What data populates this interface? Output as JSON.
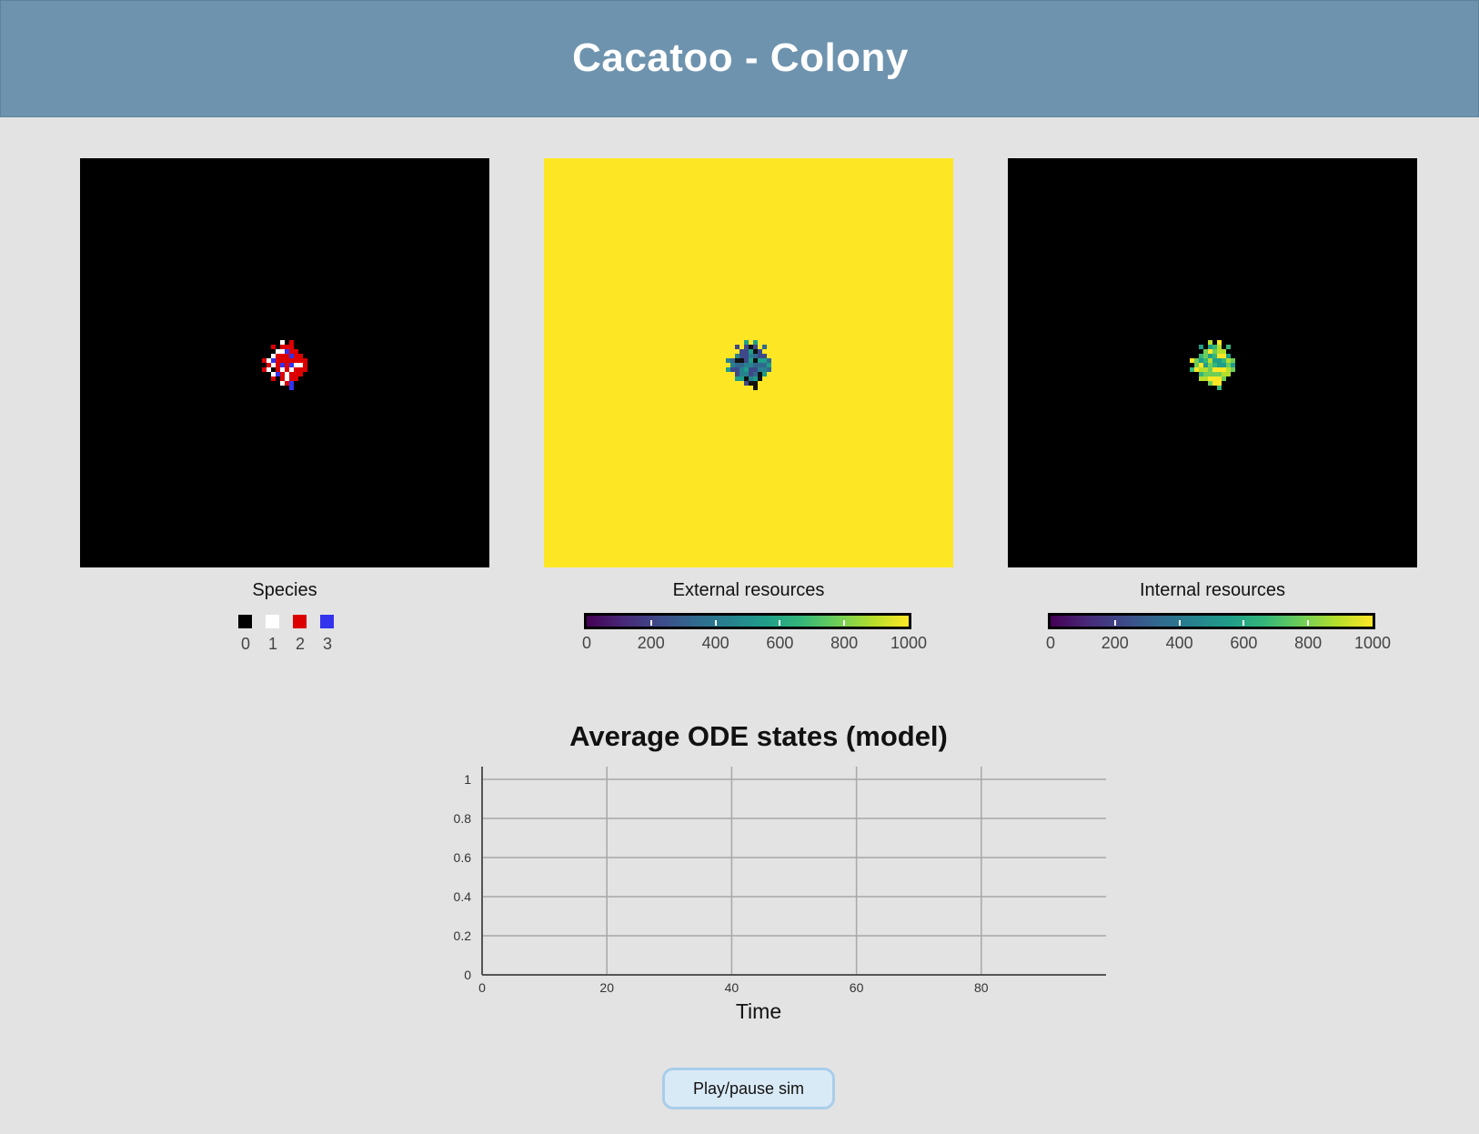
{
  "header": {
    "title": "Cacatoo - Colony"
  },
  "panels": {
    "species": {
      "label": "Species",
      "legend": [
        {
          "value": "0",
          "color": "#000000"
        },
        {
          "value": "1",
          "color": "#ffffff"
        },
        {
          "value": "2",
          "color": "#dd0000"
        },
        {
          "value": "3",
          "color": "#3333ee"
        }
      ]
    },
    "external": {
      "label": "External resources",
      "background_color": "#fde725",
      "ticks": [
        "0",
        "200",
        "400",
        "600",
        "800",
        "1000"
      ]
    },
    "internal": {
      "label": "Internal resources",
      "background_color": "#000000",
      "ticks": [
        "0",
        "200",
        "400",
        "600",
        "800",
        "1000"
      ]
    }
  },
  "colormap": [
    "#440154",
    "#482878",
    "#3e4989",
    "#31688e",
    "#26828e",
    "#1f9e89",
    "#35b779",
    "#6ece58",
    "#b5de2b",
    "#fde725"
  ],
  "chart_data": {
    "type": "line",
    "title": "Average ODE states (model)",
    "xlabel": "Time",
    "ylabel": "",
    "xlim": [
      0,
      100
    ],
    "ylim": [
      0,
      1
    ],
    "x_ticks": [
      0,
      20,
      40,
      60,
      80
    ],
    "x_tick_labels": [
      "0",
      "20",
      "40",
      "60",
      "80"
    ],
    "y_ticks": [
      0,
      0.2,
      0.4,
      0.6,
      0.8,
      1
    ],
    "y_tick_labels": [
      "0",
      "0.2",
      "0.4",
      "0.6",
      "0.8",
      "1"
    ],
    "grid": true,
    "series": []
  },
  "controls": {
    "play_pause_label": "Play/pause sim"
  }
}
